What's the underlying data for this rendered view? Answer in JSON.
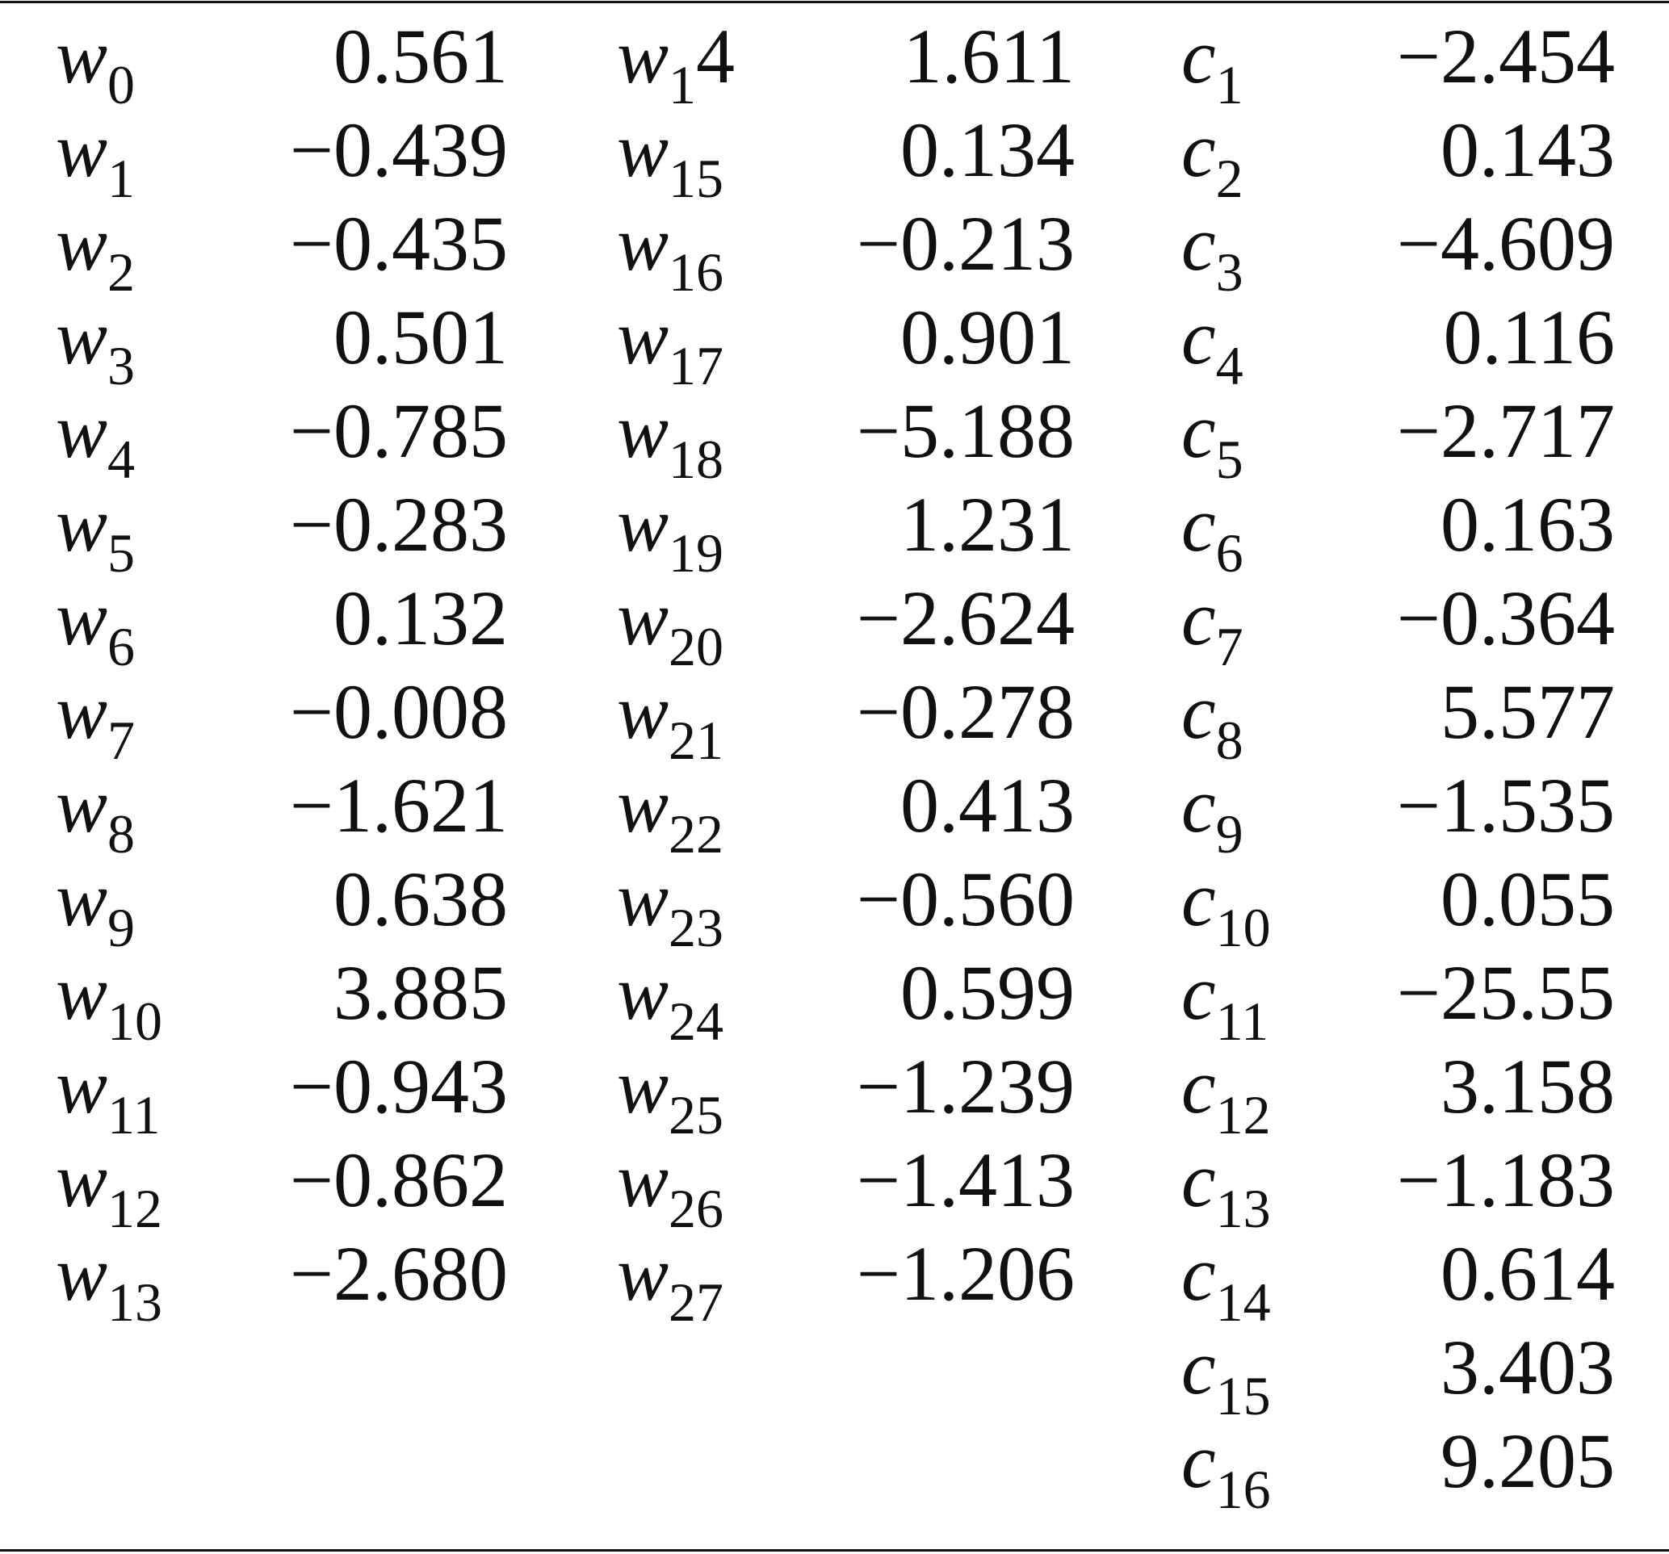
{
  "table": {
    "groups": [
      {
        "entries": [
          {
            "symbol": "w",
            "subscript": "0",
            "value": "0.561"
          },
          {
            "symbol": "w",
            "subscript": "1",
            "value": "−0.439"
          },
          {
            "symbol": "w",
            "subscript": "2",
            "value": "−0.435"
          },
          {
            "symbol": "w",
            "subscript": "3",
            "value": "0.501"
          },
          {
            "symbol": "w",
            "subscript": "4",
            "value": "−0.785"
          },
          {
            "symbol": "w",
            "subscript": "5",
            "value": "−0.283"
          },
          {
            "symbol": "w",
            "subscript": "6",
            "value": "0.132"
          },
          {
            "symbol": "w",
            "subscript": "7",
            "value": "−0.008"
          },
          {
            "symbol": "w",
            "subscript": "8",
            "value": "−1.621"
          },
          {
            "symbol": "w",
            "subscript": "9",
            "value": "0.638"
          },
          {
            "symbol": "w",
            "subscript": "10",
            "value": "3.885"
          },
          {
            "symbol": "w",
            "subscript": "11",
            "value": "−0.943"
          },
          {
            "symbol": "w",
            "subscript": "12",
            "value": "−0.862"
          },
          {
            "symbol": "w",
            "subscript": "13",
            "value": "−2.680"
          }
        ]
      },
      {
        "entries": [
          {
            "symbol": "w",
            "subscript": "1",
            "suffix": "4",
            "value": "1.611"
          },
          {
            "symbol": "w",
            "subscript": "15",
            "value": "0.134"
          },
          {
            "symbol": "w",
            "subscript": "16",
            "value": "−0.213"
          },
          {
            "symbol": "w",
            "subscript": "17",
            "value": "0.901"
          },
          {
            "symbol": "w",
            "subscript": "18",
            "value": "−5.188"
          },
          {
            "symbol": "w",
            "subscript": "19",
            "value": "1.231"
          },
          {
            "symbol": "w",
            "subscript": "20",
            "value": "−2.624"
          },
          {
            "symbol": "w",
            "subscript": "21",
            "value": "−0.278"
          },
          {
            "symbol": "w",
            "subscript": "22",
            "value": "0.413"
          },
          {
            "symbol": "w",
            "subscript": "23",
            "value": "−0.560"
          },
          {
            "symbol": "w",
            "subscript": "24",
            "value": "0.599"
          },
          {
            "symbol": "w",
            "subscript": "25",
            "value": "−1.239"
          },
          {
            "symbol": "w",
            "subscript": "26",
            "value": "−1.413"
          },
          {
            "symbol": "w",
            "subscript": "27",
            "value": "−1.206"
          }
        ]
      },
      {
        "entries": [
          {
            "symbol": "c",
            "subscript": "1",
            "value": "−2.454"
          },
          {
            "symbol": "c",
            "subscript": "2",
            "value": "0.143"
          },
          {
            "symbol": "c",
            "subscript": "3",
            "value": "−4.609"
          },
          {
            "symbol": "c",
            "subscript": "4",
            "value": "0.116"
          },
          {
            "symbol": "c",
            "subscript": "5",
            "value": "−2.717"
          },
          {
            "symbol": "c",
            "subscript": "6",
            "value": "0.163"
          },
          {
            "symbol": "c",
            "subscript": "7",
            "value": "−0.364"
          },
          {
            "symbol": "c",
            "subscript": "8",
            "value": "5.577"
          },
          {
            "symbol": "c",
            "subscript": "9",
            "value": "−1.535"
          },
          {
            "symbol": "c",
            "subscript": "10",
            "value": "0.055"
          },
          {
            "symbol": "c",
            "subscript": "11",
            "value": "−25.55"
          },
          {
            "symbol": "c",
            "subscript": "12",
            "value": "3.158"
          },
          {
            "symbol": "c",
            "subscript": "13",
            "value": "−1.183"
          },
          {
            "symbol": "c",
            "subscript": "14",
            "value": "0.614"
          },
          {
            "symbol": "c",
            "subscript": "15",
            "value": "3.403"
          },
          {
            "symbol": "c",
            "subscript": "16",
            "value": "9.205"
          }
        ]
      }
    ]
  }
}
